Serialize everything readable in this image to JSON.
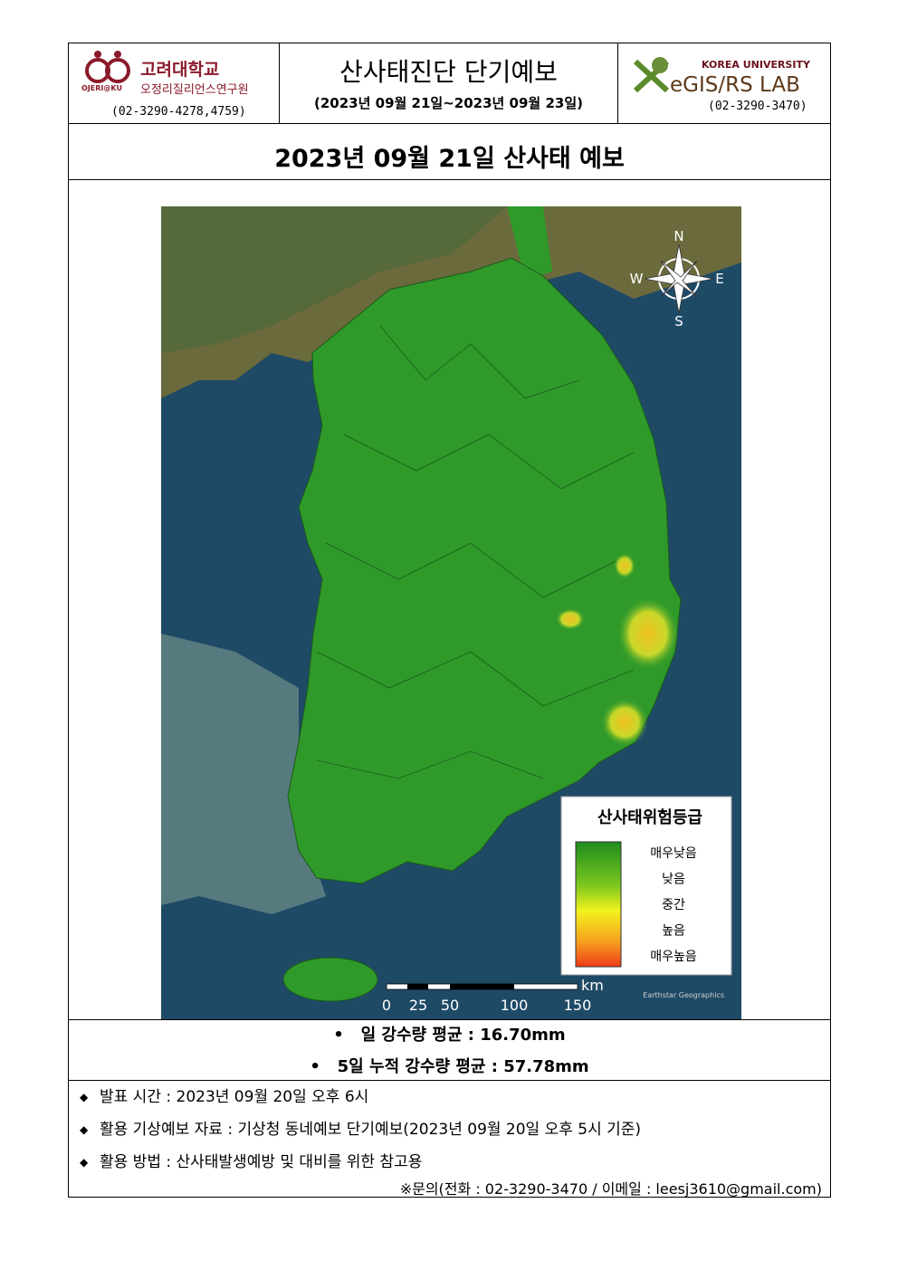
{
  "header": {
    "left": {
      "university": "고려대학교",
      "institute": "오정리질리언스연구원",
      "logo_text": "OJERI@KU",
      "phone": "(02-3290-4278,4759)"
    },
    "center": {
      "title": "산사태진단 단기예보",
      "period": "(2023년 09월 21일~2023년 09월 23일)"
    },
    "right": {
      "university": "KOREA UNIVERSITY",
      "lab": "eGIS/RS LAB",
      "phone": "(02-3290-3470)"
    }
  },
  "forecast_title": "2023년 09월 21일 산사태 예보",
  "map": {
    "compass": {
      "north": "N",
      "east": "E",
      "south": "S",
      "west": "W"
    },
    "legend": {
      "title": "산사태위험등급",
      "levels": [
        "매우낮음",
        "낮음",
        "중간",
        "높음",
        "매우높음"
      ]
    },
    "scale": {
      "labels": [
        "0",
        "25",
        "50",
        "100",
        "150"
      ],
      "unit": "km"
    },
    "attribution": "Earthstar Geographics"
  },
  "rainfall": [
    "일 강수량 평균 : 16.70mm",
    "5일 누적 강수량 평균 : 57.78mm"
  ],
  "notes": [
    "발표 시간 : 2023년 09월 20일 오후 6시",
    "활용 기상예보 자료 : 기상청 동네예보 단기예보(2023년 09월 20일 오후 5시 기준)",
    "활용 방법 : 산사태발생예방 및 대비를 위한 참고용"
  ],
  "contact": "※문의(전화 : 02-3290-3470 / 이메일 : leesj3610@gmail.com)"
}
